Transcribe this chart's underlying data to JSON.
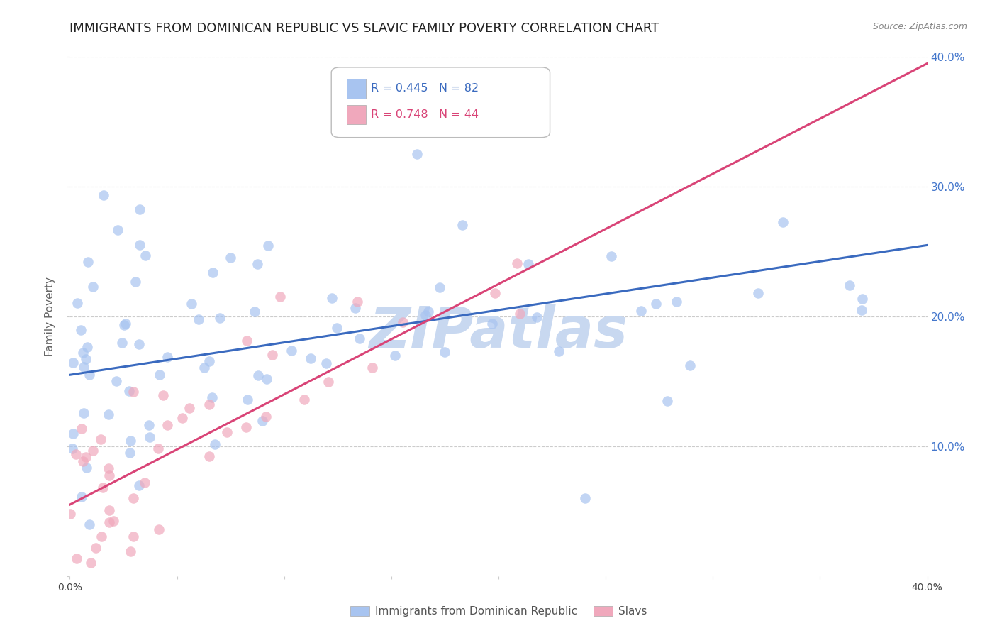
{
  "title": "IMMIGRANTS FROM DOMINICAN REPUBLIC VS SLAVIC FAMILY POVERTY CORRELATION CHART",
  "source": "Source: ZipAtlas.com",
  "ylabel": "Family Poverty",
  "xlim": [
    0.0,
    0.4
  ],
  "ylim": [
    0.0,
    0.4
  ],
  "blue_R": 0.445,
  "blue_N": 82,
  "pink_R": 0.748,
  "pink_N": 44,
  "blue_color": "#a8c4f0",
  "pink_color": "#f0a8bc",
  "blue_line_color": "#3a6abf",
  "pink_line_color": "#d94477",
  "background_color": "#ffffff",
  "grid_color": "#cccccc",
  "watermark_text": "ZIPatlas",
  "watermark_color": "#c8d8f0",
  "legend_label_blue": "Immigrants from Dominican Republic",
  "legend_label_pink": "Slavs",
  "title_fontsize": 13,
  "tick_label_color_right": "#4477cc",
  "blue_line_start_y": 0.155,
  "blue_line_end_y": 0.255,
  "pink_line_start_y": 0.055,
  "pink_line_end_y": 0.395
}
